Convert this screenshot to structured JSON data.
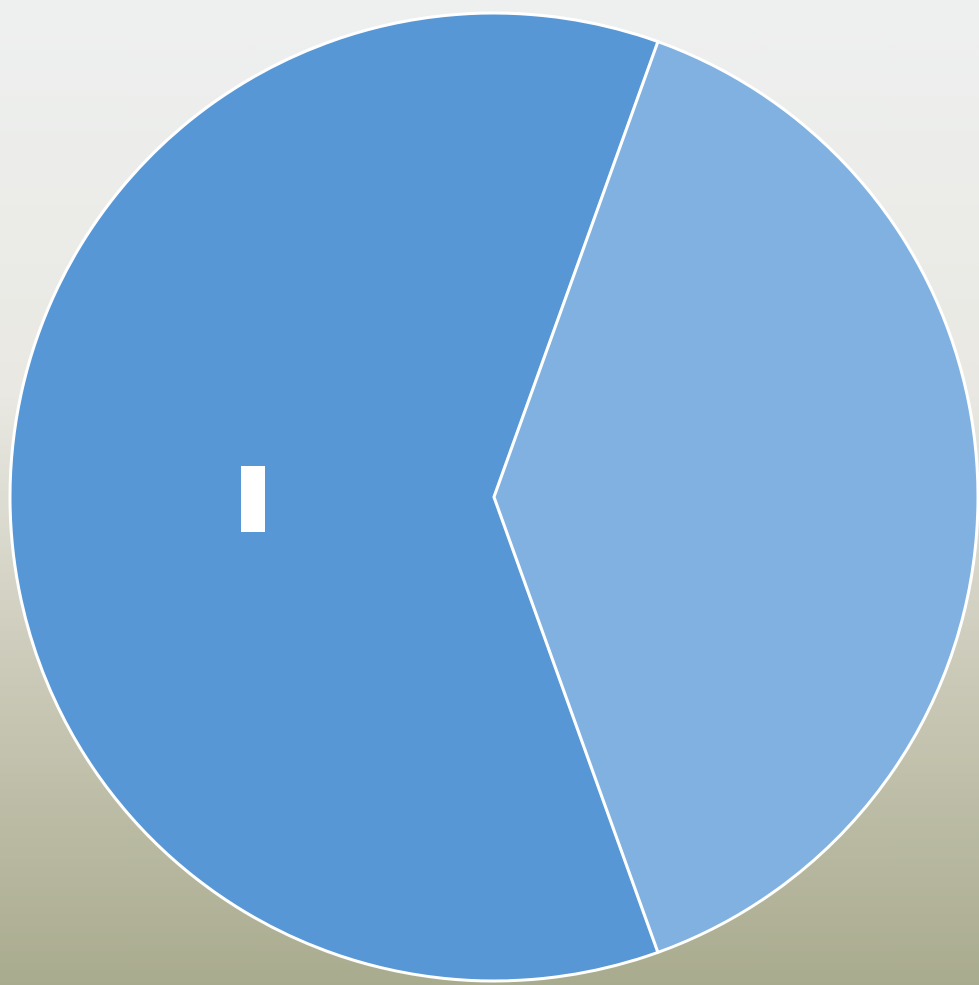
{
  "chart_data": {
    "type": "pie",
    "categories": [
      null,
      null
    ],
    "values": [
      61,
      39
    ],
    "colors": [
      "#5797d5",
      "#80b1e0"
    ]
  }
}
